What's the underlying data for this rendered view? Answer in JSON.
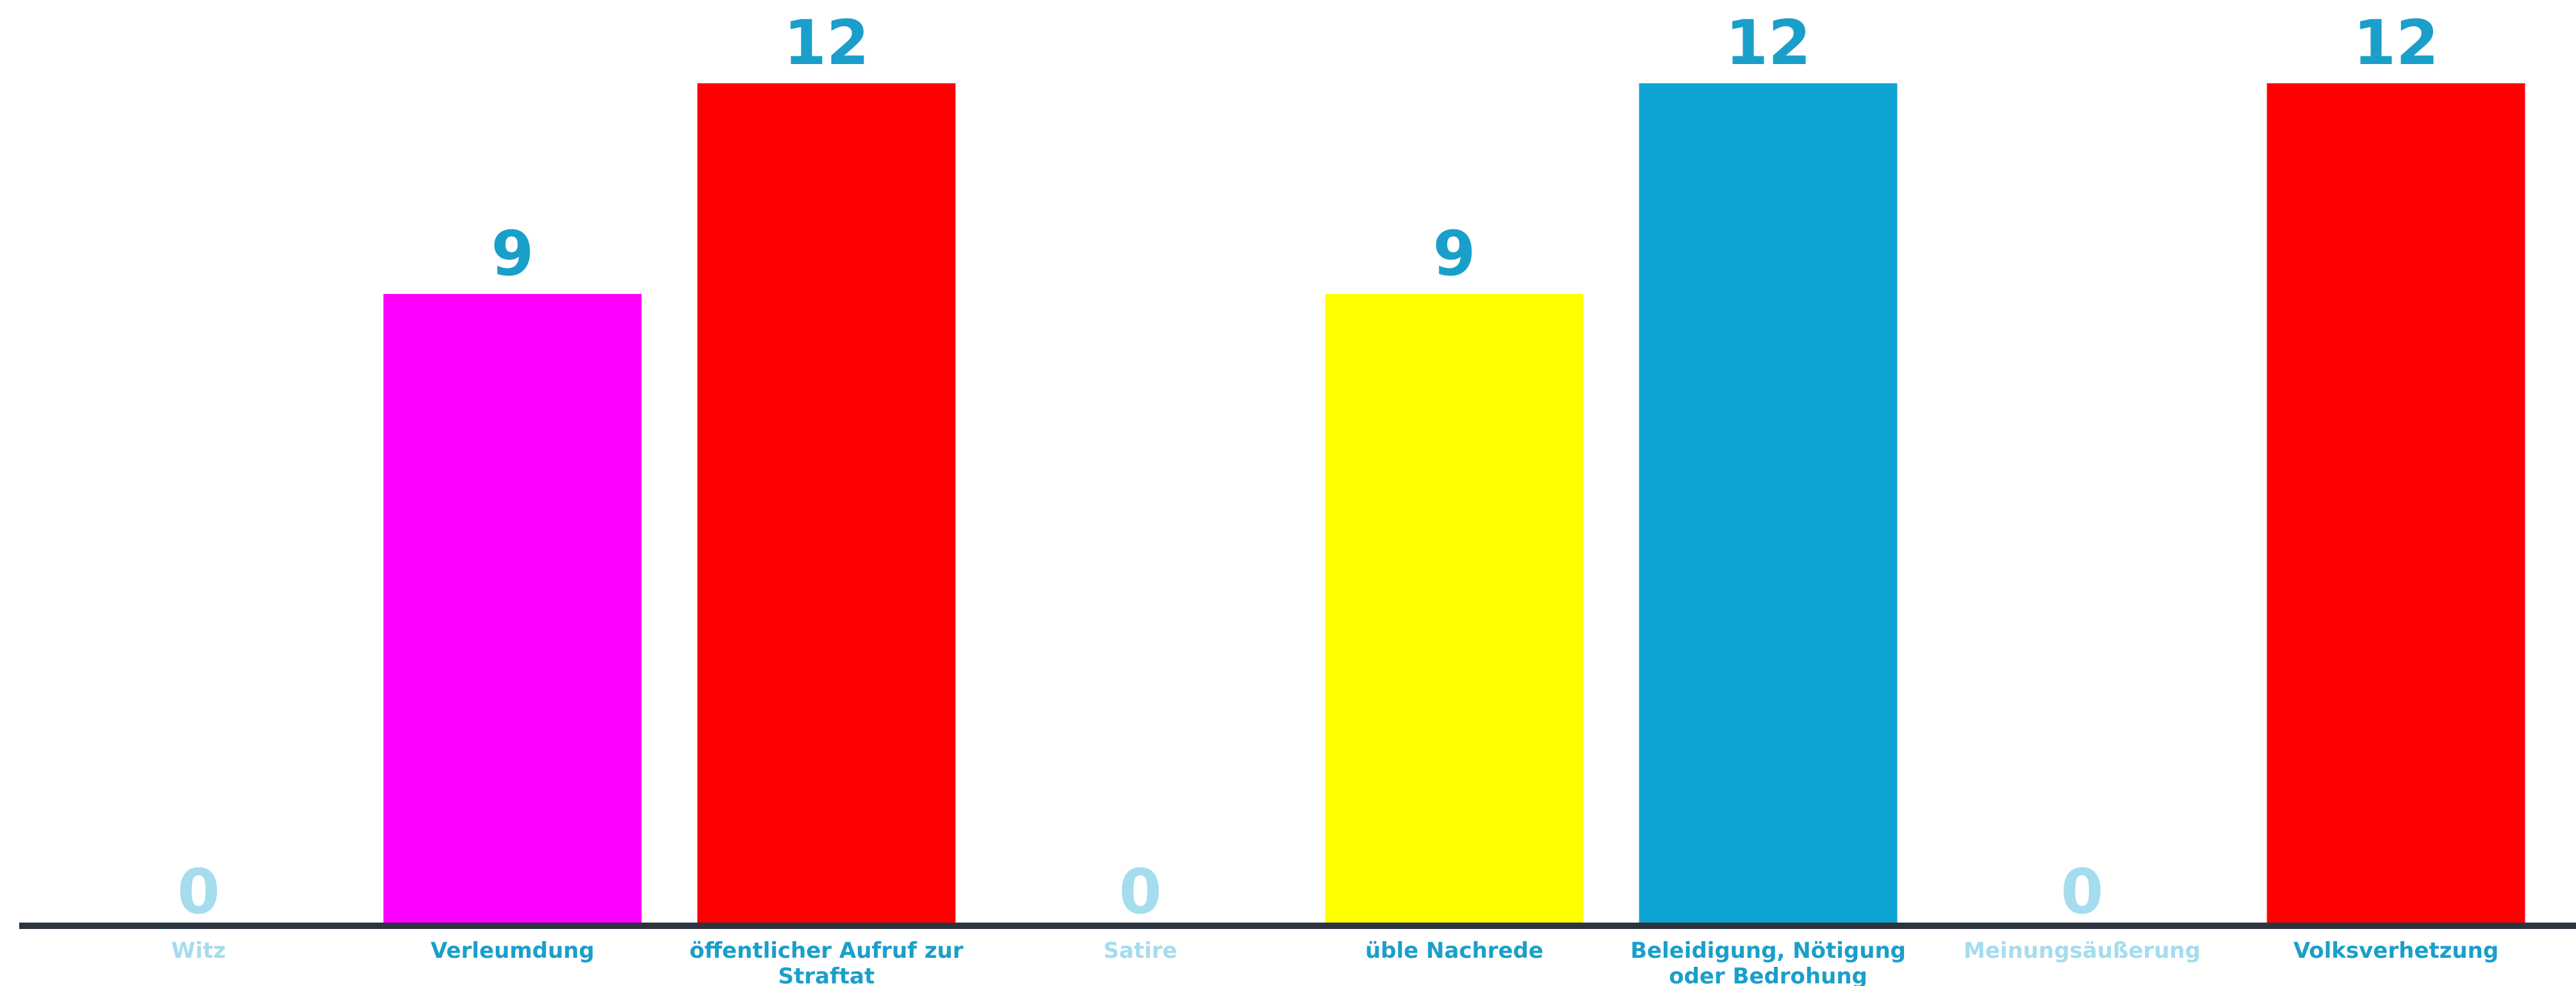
{
  "chart_data": {
    "type": "bar",
    "categories": [
      "Witz",
      "Verleumdung",
      "öffentlicher Aufruf zur Straftat",
      "Satire",
      "üble Nachrede",
      "Beleidigung, Nötigung oder Bedrohung",
      "Meinungsäußerung",
      "Volksverhetzung"
    ],
    "category_lines": [
      [
        "Witz"
      ],
      [
        "Verleumdung"
      ],
      [
        "öffentlicher Aufruf zur",
        "Straftat"
      ],
      [
        "Satire"
      ],
      [
        "üble Nachrede"
      ],
      [
        "Beleidigung, Nötigung",
        "oder Bedrohung"
      ],
      [
        "Meinungsäußerung"
      ],
      [
        "Volksverhetzung"
      ]
    ],
    "values": [
      0,
      9,
      12,
      0,
      9,
      12,
      0,
      12
    ],
    "colors": [
      "#ffffff",
      "#ff00ff",
      "#ff0000",
      "#ffffff",
      "#ffff00",
      "#0ea5d2",
      "#ffffff",
      "#ff0000"
    ],
    "label_colors": [
      "#a5dcee",
      "#1a9fca",
      "#1a9fca",
      "#a5dcee",
      "#1a9fca",
      "#1a9fca",
      "#a5dcee",
      "#1a9fca"
    ],
    "axis_color": "#2d3440",
    "ylim": [
      0,
      12
    ],
    "title": "",
    "xlabel": "",
    "ylabel": "",
    "grid": false,
    "legend": "none"
  }
}
